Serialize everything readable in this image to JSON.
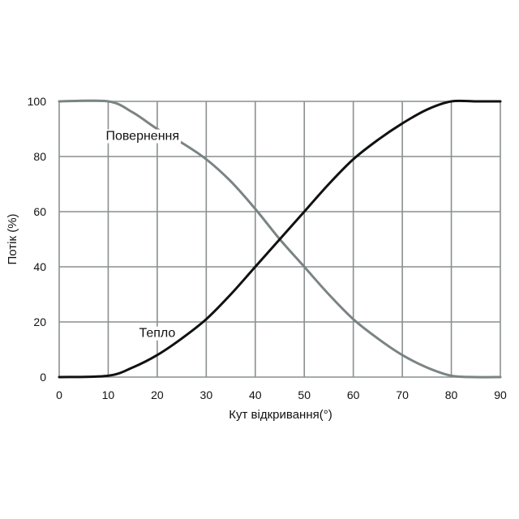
{
  "chart_data": {
    "type": "line",
    "title": "",
    "xlabel": "Кут відкривання(°)",
    "ylabel": "Потік (%)",
    "xlim": [
      0,
      90
    ],
    "ylim": [
      0,
      100
    ],
    "xticks": [
      0,
      10,
      20,
      30,
      40,
      50,
      60,
      70,
      80,
      90
    ],
    "yticks": [
      0,
      20,
      40,
      60,
      80,
      100
    ],
    "grid": true,
    "legend": "none",
    "series": [
      {
        "name": "Повернення",
        "color": "#7b8484",
        "x": [
          0,
          10,
          15,
          20,
          25,
          30,
          35,
          40,
          45,
          50,
          55,
          60,
          65,
          70,
          75,
          80,
          85,
          90
        ],
        "values": [
          100,
          100,
          96,
          90,
          85,
          79,
          71,
          61,
          50,
          40,
          30,
          21,
          14,
          8,
          3.5,
          0.5,
          0,
          0
        ]
      },
      {
        "name": "Тепло",
        "color": "#111111",
        "x": [
          0,
          10,
          15,
          20,
          25,
          30,
          35,
          40,
          45,
          50,
          55,
          60,
          65,
          70,
          75,
          80,
          85,
          90
        ],
        "values": [
          0,
          0.5,
          3.5,
          8,
          14,
          21,
          30,
          40,
          50,
          60,
          70,
          79,
          86,
          92,
          97,
          100,
          100,
          100
        ]
      }
    ],
    "annotations": [
      {
        "text": "Повернення",
        "x": 17,
        "y": 86
      },
      {
        "text": "Тепло",
        "x": 20,
        "y": 14.5
      }
    ]
  }
}
